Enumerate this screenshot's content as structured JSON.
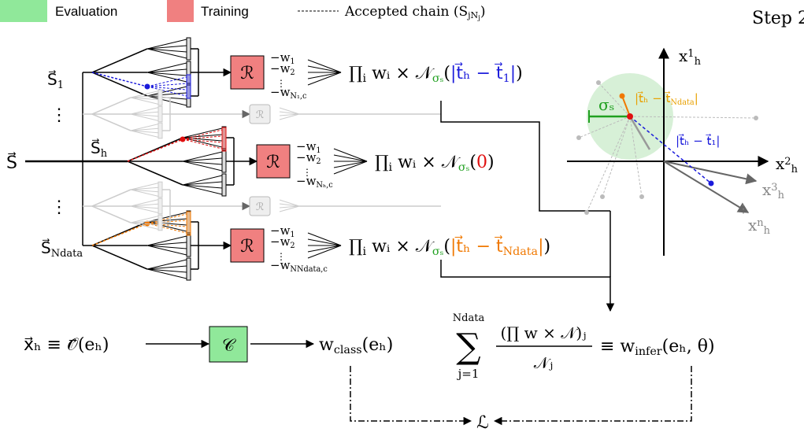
{
  "legend": {
    "evaluation": "Evaluation",
    "training": "Training",
    "chain": "Accepted chain (S",
    "chain_sub": "jN",
    "chain_subsub": "j",
    "chain_close": ")"
  },
  "step": "Step 2",
  "input": "S⃗",
  "rows": [
    {
      "label": "S⃗",
      "label_sub": "1",
      "box": "ℛ",
      "weights": [
        {
          "main": "−w",
          "sub": "1"
        },
        {
          "main": "−w",
          "sub": "2"
        },
        {
          "main": "−w",
          "sub": "N₁,c"
        }
      ],
      "dots": "⋮",
      "formula": {
        "prod": "∏",
        "prod_sub": "i",
        "mid": " wᵢ × 𝒩",
        "sigma": "σₛ",
        "open": "(",
        "arg": "|t⃗ₕ − t⃗",
        "arg_sub": "1",
        "arg_end": "|",
        "close": ")"
      }
    },
    {
      "label": "S⃗",
      "label_sub": "h",
      "box": "ℛ",
      "weights": [
        {
          "main": "−w",
          "sub": "1"
        },
        {
          "main": "−w",
          "sub": "2"
        },
        {
          "main": "−w",
          "sub": "Nₕ,c"
        }
      ],
      "dots": "⋮",
      "formula": {
        "prod": "∏",
        "prod_sub": "i",
        "mid": " wᵢ × 𝒩",
        "sigma": "σₛ",
        "open": "(",
        "arg": "0",
        "close": ")"
      }
    },
    {
      "label": "S⃗",
      "label_sub": "Ndata",
      "box": "ℛ",
      "weights": [
        {
          "main": "−w",
          "sub": "1"
        },
        {
          "main": "−w",
          "sub": "2"
        },
        {
          "main": "−w",
          "sub": "NNdata,c"
        }
      ],
      "dots": "⋮",
      "formula": {
        "prod": "∏",
        "prod_sub": "i",
        "mid": " wᵢ × 𝒩",
        "sigma": "σₛ",
        "open": "(",
        "arg": "|t⃗ₕ − t⃗",
        "arg_sub": "Ndata",
        "arg_end": "|",
        "close": ")"
      }
    }
  ],
  "ghost_rows": [
    {
      "box": "ℛ",
      "dots": "⋮"
    },
    {
      "box": "ℛ",
      "dots": "⋮"
    }
  ],
  "plot": {
    "y_axis": {
      "main": "x",
      "sup": "1",
      "sub": "h"
    },
    "x_axis": {
      "main": "x",
      "sup": "2",
      "sub": "h"
    },
    "x3": {
      "main": "x",
      "sup": "3",
      "sub": "h"
    },
    "xn": {
      "main": "x",
      "sup": "n",
      "sub": "h"
    },
    "dots": "⋮",
    "sigma": "σₛ",
    "dist_N": {
      "text": "|t⃗ₕ − t⃗",
      "sub": "Ndata",
      "end": "|"
    },
    "dist_1": "|t⃗ₕ − t⃗₁|"
  },
  "bottom": {
    "observable": "x⃗ₕ ≡ 𝒪⃗(eₕ)",
    "classifier": "𝒞",
    "w_class": {
      "main": "w",
      "sub": "class",
      "rest": "(eₕ)"
    },
    "sum": {
      "top": "Ndata",
      "symbol": "∑",
      "bottom": "j=1",
      "numerator": "(∏ w × 𝒩)ⱼ",
      "denominator": "𝒩ⱼ",
      "equiv": "≡ w",
      "equiv_sub": "infer",
      "equiv_rest": "(eₕ, θ)"
    },
    "loss": "ℒ"
  }
}
